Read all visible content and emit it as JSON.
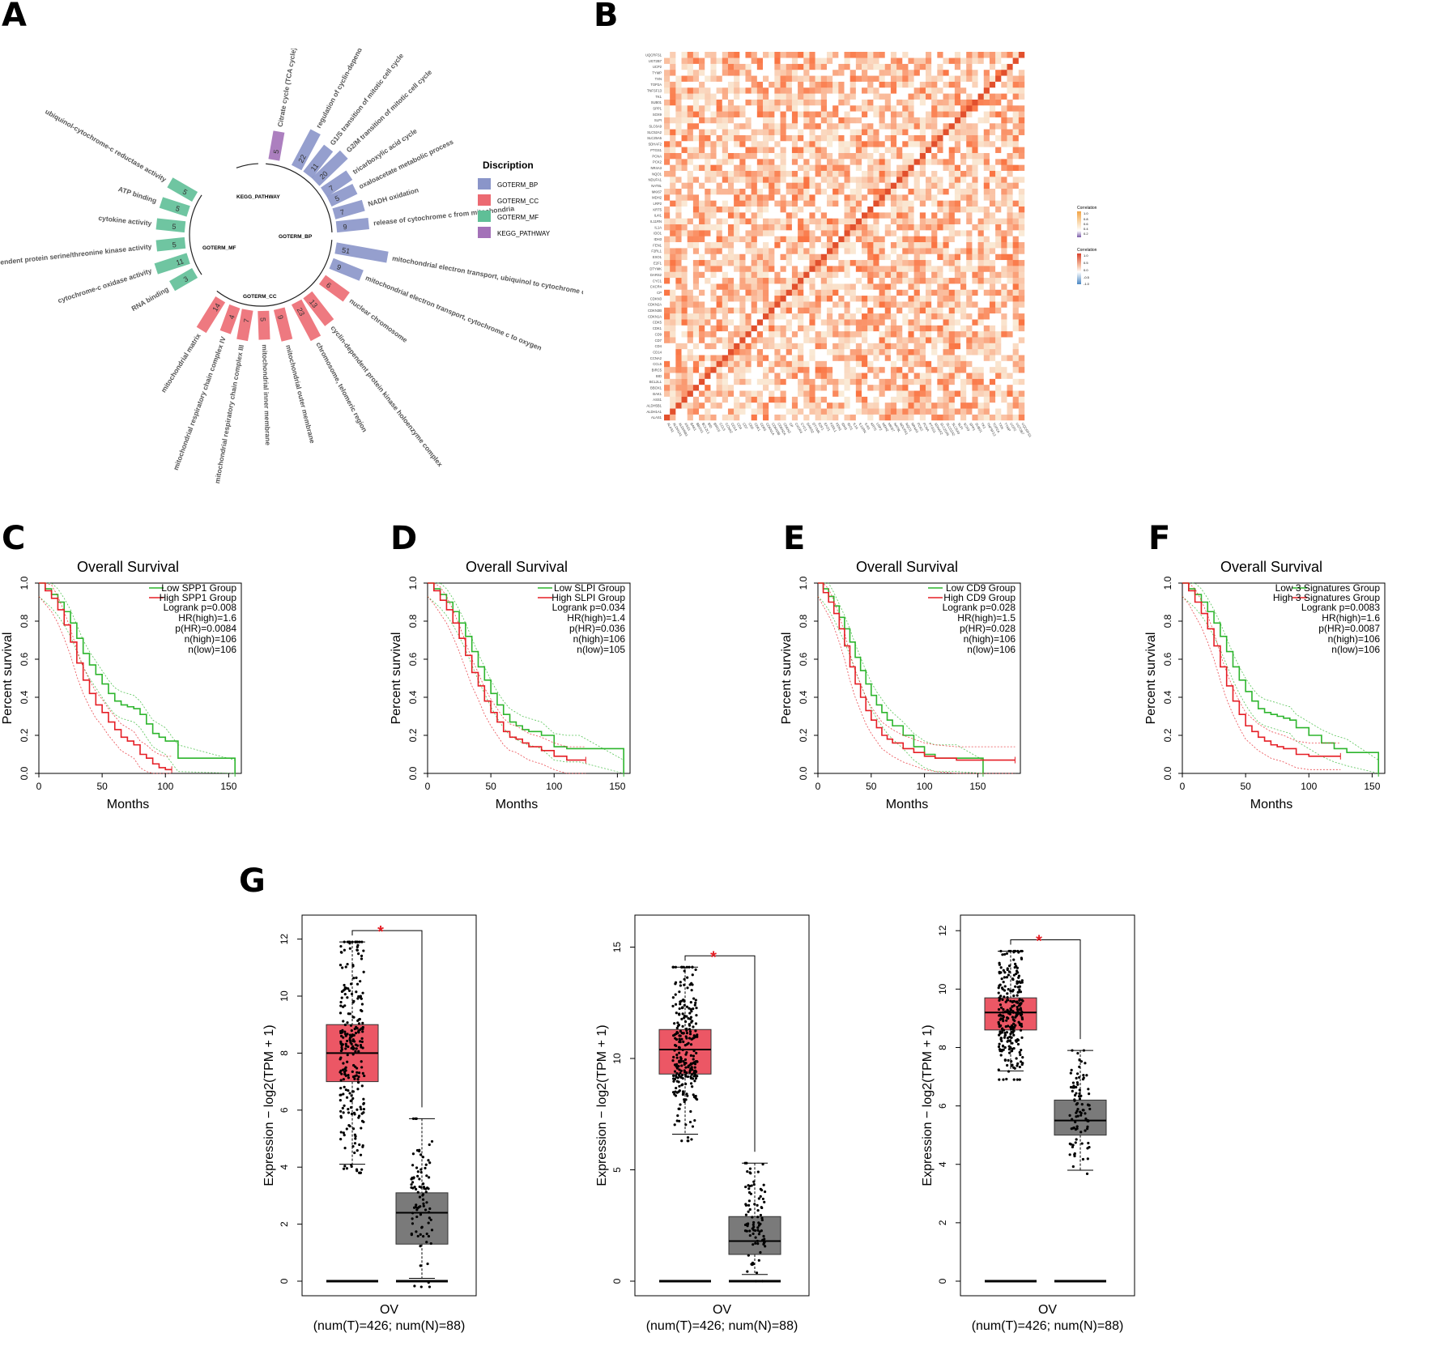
{
  "panels": {
    "A": "A",
    "B": "B",
    "C": "C",
    "D": "D",
    "E": "E",
    "F": "F",
    "G": "G"
  },
  "colors": {
    "bp": "#8a95c9",
    "cc": "#ec6a72",
    "mf": "#5fbf97",
    "kegg": "#a371b8",
    "low": "#2db52d",
    "high": "#e51e25",
    "tumor": "#ec5765",
    "normal": "#7a7a7a",
    "sig": "#e51e25"
  },
  "chart_data": [
    {
      "type": "bar",
      "panel": "A",
      "legend_title": "Discription",
      "legend": [
        "GOTERM_BP",
        "GOTERM_CC",
        "GOTERM_MF",
        "KEGG_PATHWAY"
      ],
      "group_labels": [
        "KEGG_PATHWAY",
        "GOTERM_BP",
        "GOTERM_MF",
        "GOTERM_CC"
      ],
      "bars": [
        {
          "label": "Citrate cycle (TCA cycle)",
          "value": 5,
          "group": "KEGG_PATHWAY"
        },
        {
          "label": "regulation of cyclin-dependent protein serine/threonine kinase activity",
          "value": 22,
          "group": "GOTERM_BP"
        },
        {
          "label": "G1/S transition of mitotic cell cycle",
          "value": 11,
          "group": "GOTERM_BP"
        },
        {
          "label": "G2/M transition of mitotic cell cycle",
          "value": 20,
          "group": "GOTERM_BP"
        },
        {
          "label": "tricarboxylic acid cycle",
          "value": 7,
          "group": "GOTERM_BP"
        },
        {
          "label": "oxaloacetate metabolic process",
          "value": 5,
          "group": "GOTERM_BP"
        },
        {
          "label": "NADH oxidation",
          "value": 7,
          "group": "GOTERM_BP"
        },
        {
          "label": "release of cytochrome c from mitochondria",
          "value": 9,
          "group": "GOTERM_BP"
        },
        {
          "label": "mitochondrial electron transport, ubiquinol to cytochrome c",
          "value": 51,
          "group": "GOTERM_BP"
        },
        {
          "label": "mitochondrial electron transport, cytochrome c to oxygen",
          "value": 9,
          "group": "GOTERM_BP"
        },
        {
          "label": "nuclear chromosome",
          "value": 6,
          "group": "GOTERM_CC"
        },
        {
          "label": "cyclin-dependent protein kinase holoenzyme complex",
          "value": 13,
          "group": "GOTERM_CC"
        },
        {
          "label": "chromosome, telomeric region",
          "value": 23,
          "group": "GOTERM_CC"
        },
        {
          "label": "mitochondrial outer membrane",
          "value": 9,
          "group": "GOTERM_CC"
        },
        {
          "label": "mitochondrial inner membrane",
          "value": 5,
          "group": "GOTERM_CC"
        },
        {
          "label": "mitochondrial respiratory chain complex III",
          "value": 7,
          "group": "GOTERM_CC"
        },
        {
          "label": "mitochondrial respiratory chain complex IV",
          "value": 4,
          "group": "GOTERM_CC"
        },
        {
          "label": "mitochondrial matrix",
          "value": 14,
          "group": "GOTERM_CC"
        },
        {
          "label": "RNA binding",
          "value": 3,
          "group": "GOTERM_MF"
        },
        {
          "label": "cytochrome-c oxidase activity",
          "value": 11,
          "group": "GOTERM_MF"
        },
        {
          "label": "cyclin-dependent protein serine/threonine kinase activity",
          "value": 5,
          "group": "GOTERM_MF"
        },
        {
          "label": "cytokine activity",
          "value": 5,
          "group": "GOTERM_MF"
        },
        {
          "label": "ATP binding",
          "value": 5,
          "group": "GOTERM_MF"
        },
        {
          "label": "ubiquinol-cytochrome-c reductase activity",
          "value": 5,
          "group": "GOTERM_MF"
        }
      ]
    },
    {
      "type": "heatmap",
      "panel": "B",
      "genes": [
        "UQCRFS1",
        "UGT2B7",
        "UCP2",
        "TYMP",
        "TXN",
        "TOP2A",
        "TNFSF13",
        "TK1",
        "SUB01",
        "SPP1",
        "SOX9",
        "SLPI",
        "SLC6A9",
        "SLC52A2",
        "SLC25A5",
        "SDHAF2",
        "PTGS1",
        "PCNA",
        "PCK2",
        "NR4A3",
        "NQO1",
        "NDUFA1",
        "NAT8L",
        "MKI67",
        "MDH2",
        "LRP2",
        "KRT5",
        "IL4I1",
        "IL11RN",
        "IL1A",
        "IDO1",
        "IDH3",
        "FEN1",
        "F2RL1",
        "EXO1",
        "E2F1",
        "DTYMK",
        "DARS2",
        "CYC1",
        "CXCR4",
        "CP",
        "CDKN3",
        "CDKN2A",
        "CDKN3B",
        "CDKN1A",
        "CDK5",
        "CDK1",
        "CD9",
        "CD7",
        "CD4",
        "CD14",
        "CCNA2",
        "CCL5",
        "BIRC5",
        "BID",
        "BCL2L1",
        "BBOX1",
        "BAK1",
        "ASS1",
        "ALDH5B1",
        "ALDH1A1",
        "ALAS1"
      ],
      "legend_titles": [
        "Correlation",
        "Correlation"
      ],
      "legend_ticks_1": [
        "1.0",
        "0.8",
        "0.6",
        "0.4",
        "0.2",
        "0.0"
      ],
      "legend_ticks_2": [
        "1.0",
        "0.5",
        "0.0",
        "-0.5",
        "-1.0"
      ],
      "xlim": [
        -1,
        1
      ]
    },
    {
      "type": "line",
      "panel": "C",
      "title": "Overall Survival",
      "xlabel": "Months",
      "ylabel": "Percent survival",
      "xlim": [
        0,
        160
      ],
      "ylim": [
        0,
        1
      ],
      "xticks": [
        0,
        50,
        100,
        150
      ],
      "yticks": [
        "0.0",
        "0.2",
        "0.4",
        "0.6",
        "0.8",
        "1.0"
      ],
      "legend": [
        "Low SPP1 Group",
        "High SPP1 Group"
      ],
      "stats": [
        "Logrank p=0.008",
        "HR(high)=1.6",
        "p(HR)=0.0084",
        "n(high)=106",
        "n(low)=106"
      ],
      "series": [
        {
          "name": "Low SPP1 Group",
          "x": [
            0,
            5,
            10,
            15,
            20,
            25,
            30,
            35,
            40,
            45,
            50,
            55,
            60,
            65,
            70,
            75,
            80,
            85,
            90,
            95,
            100,
            110,
            155
          ],
          "y": [
            1.0,
            0.97,
            0.94,
            0.9,
            0.85,
            0.79,
            0.71,
            0.63,
            0.57,
            0.52,
            0.47,
            0.42,
            0.38,
            0.36,
            0.35,
            0.34,
            0.31,
            0.26,
            0.21,
            0.19,
            0.17,
            0.08,
            0.0
          ]
        },
        {
          "name": "High SPP1 Group",
          "x": [
            0,
            5,
            10,
            15,
            20,
            25,
            30,
            35,
            40,
            45,
            50,
            55,
            60,
            65,
            70,
            75,
            80,
            85,
            90,
            95,
            100,
            105
          ],
          "y": [
            1.0,
            0.96,
            0.92,
            0.86,
            0.78,
            0.69,
            0.58,
            0.49,
            0.42,
            0.36,
            0.32,
            0.27,
            0.23,
            0.19,
            0.17,
            0.15,
            0.1,
            0.08,
            0.05,
            0.03,
            0.02,
            0.02
          ]
        }
      ]
    },
    {
      "type": "line",
      "panel": "D",
      "title": "Overall Survival",
      "xlabel": "Months",
      "ylabel": "Percent survival",
      "xlim": [
        0,
        160
      ],
      "ylim": [
        0,
        1
      ],
      "xticks": [
        0,
        50,
        100,
        150
      ],
      "yticks": [
        "0.0",
        "0.2",
        "0.4",
        "0.6",
        "0.8",
        "1.0"
      ],
      "legend": [
        "Low SLPI Group",
        "High SLPI Group"
      ],
      "stats": [
        "Logrank p=0.034",
        "HR(high)=1.4",
        "p(HR)=0.036",
        "n(high)=106",
        "n(low)=105"
      ],
      "series": [
        {
          "name": "Low SLPI Group",
          "x": [
            0,
            5,
            10,
            15,
            20,
            25,
            30,
            35,
            40,
            45,
            50,
            55,
            60,
            65,
            70,
            75,
            80,
            90,
            100,
            110,
            120,
            155
          ],
          "y": [
            1.0,
            0.97,
            0.94,
            0.9,
            0.85,
            0.79,
            0.72,
            0.64,
            0.56,
            0.49,
            0.42,
            0.36,
            0.31,
            0.27,
            0.25,
            0.23,
            0.22,
            0.2,
            0.14,
            0.13,
            0.13,
            0.0
          ]
        },
        {
          "name": "High SLPI Group",
          "x": [
            0,
            5,
            10,
            15,
            20,
            25,
            30,
            35,
            40,
            45,
            50,
            55,
            60,
            65,
            70,
            75,
            80,
            90,
            100,
            110,
            125
          ],
          "y": [
            1.0,
            0.96,
            0.91,
            0.86,
            0.79,
            0.71,
            0.62,
            0.53,
            0.46,
            0.38,
            0.32,
            0.27,
            0.22,
            0.19,
            0.18,
            0.16,
            0.14,
            0.12,
            0.09,
            0.07,
            0.07
          ]
        }
      ]
    },
    {
      "type": "line",
      "panel": "E",
      "title": "Overall Survival",
      "xlabel": "Months",
      "ylabel": "Percent survival",
      "xlim": [
        0,
        190
      ],
      "ylim": [
        0,
        1
      ],
      "xticks": [
        0,
        50,
        100,
        150
      ],
      "yticks": [
        "0.0",
        "0.2",
        "0.4",
        "0.6",
        "0.8",
        "1.0"
      ],
      "legend": [
        "Low CD9 Group",
        "High CD9 Group"
      ],
      "stats": [
        "Logrank p=0.028",
        "HR(high)=1.5",
        "p(HR)=0.028",
        "n(high)=106",
        "n(low)=106"
      ],
      "series": [
        {
          "name": "Low CD9 Group",
          "x": [
            0,
            5,
            10,
            15,
            20,
            25,
            30,
            35,
            40,
            45,
            50,
            55,
            60,
            65,
            70,
            80,
            90,
            100,
            110,
            130,
            155
          ],
          "y": [
            1.0,
            0.97,
            0.93,
            0.88,
            0.82,
            0.76,
            0.69,
            0.61,
            0.54,
            0.47,
            0.41,
            0.36,
            0.32,
            0.28,
            0.25,
            0.2,
            0.14,
            0.1,
            0.08,
            0.08,
            0.0
          ]
        },
        {
          "name": "High CD9 Group",
          "x": [
            0,
            5,
            10,
            15,
            20,
            25,
            30,
            35,
            40,
            45,
            50,
            55,
            60,
            65,
            70,
            80,
            90,
            100,
            110,
            130,
            155,
            185
          ],
          "y": [
            1.0,
            0.95,
            0.9,
            0.84,
            0.76,
            0.67,
            0.56,
            0.47,
            0.4,
            0.33,
            0.28,
            0.24,
            0.2,
            0.18,
            0.16,
            0.13,
            0.11,
            0.09,
            0.08,
            0.07,
            0.07,
            0.07
          ]
        }
      ]
    },
    {
      "type": "line",
      "panel": "F",
      "title": "Overall Survival",
      "xlabel": "Months",
      "ylabel": "Percent survival",
      "xlim": [
        0,
        160
      ],
      "ylim": [
        0,
        1
      ],
      "xticks": [
        0,
        50,
        100,
        150
      ],
      "yticks": [
        "0.0",
        "0.2",
        "0.4",
        "0.6",
        "0.8",
        "1.0"
      ],
      "legend": [
        "Low 3 Signatures Group",
        "High 3 Signatures Group"
      ],
      "stats": [
        "Logrank p=0.0083",
        "HR(high)=1.6",
        "p(HR)=0.0087",
        "n(high)=106",
        "n(low)=106"
      ],
      "series": [
        {
          "name": "Low 3 Signatures Group",
          "x": [
            0,
            5,
            10,
            15,
            20,
            25,
            30,
            35,
            40,
            45,
            50,
            55,
            60,
            65,
            70,
            75,
            80,
            85,
            90,
            100,
            110,
            120,
            130,
            155
          ],
          "y": [
            1.0,
            0.97,
            0.94,
            0.9,
            0.85,
            0.79,
            0.72,
            0.64,
            0.56,
            0.49,
            0.43,
            0.38,
            0.34,
            0.32,
            0.31,
            0.3,
            0.29,
            0.28,
            0.24,
            0.2,
            0.16,
            0.13,
            0.11,
            0.0
          ]
        },
        {
          "name": "High 3 Signatures Group",
          "x": [
            0,
            5,
            10,
            15,
            20,
            25,
            30,
            35,
            40,
            45,
            50,
            55,
            60,
            65,
            70,
            75,
            80,
            90,
            100,
            110,
            125
          ],
          "y": [
            1.0,
            0.96,
            0.9,
            0.84,
            0.76,
            0.67,
            0.56,
            0.46,
            0.38,
            0.31,
            0.25,
            0.22,
            0.19,
            0.17,
            0.15,
            0.14,
            0.13,
            0.1,
            0.09,
            0.09,
            0.09
          ]
        }
      ]
    },
    {
      "type": "box",
      "panel": "G1",
      "xlabel": "OV",
      "xsub": "(num(T)=426; num(N)=88)",
      "ylabel": "Expression − log2(TPM + 1)",
      "ylim": [
        0,
        12.5
      ],
      "yticks": [
        0,
        2,
        4,
        6,
        8,
        10,
        12
      ],
      "sig": "*",
      "boxes": [
        {
          "name": "T",
          "q1": 7.0,
          "median": 8.0,
          "q3": 9.0,
          "lo": 4.1,
          "hi": 11.9
        },
        {
          "name": "N",
          "q1": 1.3,
          "median": 2.4,
          "q3": 3.1,
          "lo": 0.1,
          "hi": 5.7
        }
      ]
    },
    {
      "type": "box",
      "panel": "G2",
      "xlabel": "OV",
      "xsub": "(num(T)=426; num(N)=88)",
      "ylabel": "Expression − log2(TPM + 1)",
      "ylim": [
        0,
        16
      ],
      "yticks": [
        0,
        5,
        10,
        15
      ],
      "sig": "*",
      "boxes": [
        {
          "name": "T",
          "q1": 9.3,
          "median": 10.4,
          "q3": 11.3,
          "lo": 6.6,
          "hi": 14.1
        },
        {
          "name": "N",
          "q1": 1.2,
          "median": 1.8,
          "q3": 2.9,
          "lo": 0.3,
          "hi": 5.3
        }
      ]
    },
    {
      "type": "box",
      "panel": "G3",
      "xlabel": "OV",
      "xsub": "(num(T)=426; num(N)=88)",
      "ylabel": "Expression − log2(TPM + 1)",
      "ylim": [
        0,
        12.2
      ],
      "yticks": [
        0,
        2,
        4,
        6,
        8,
        10,
        12
      ],
      "sig": "*",
      "boxes": [
        {
          "name": "T",
          "q1": 8.6,
          "median": 9.2,
          "q3": 9.7,
          "lo": 7.2,
          "hi": 11.3
        },
        {
          "name": "N",
          "q1": 5.0,
          "median": 5.5,
          "q3": 6.2,
          "lo": 3.8,
          "hi": 7.9
        }
      ]
    }
  ]
}
